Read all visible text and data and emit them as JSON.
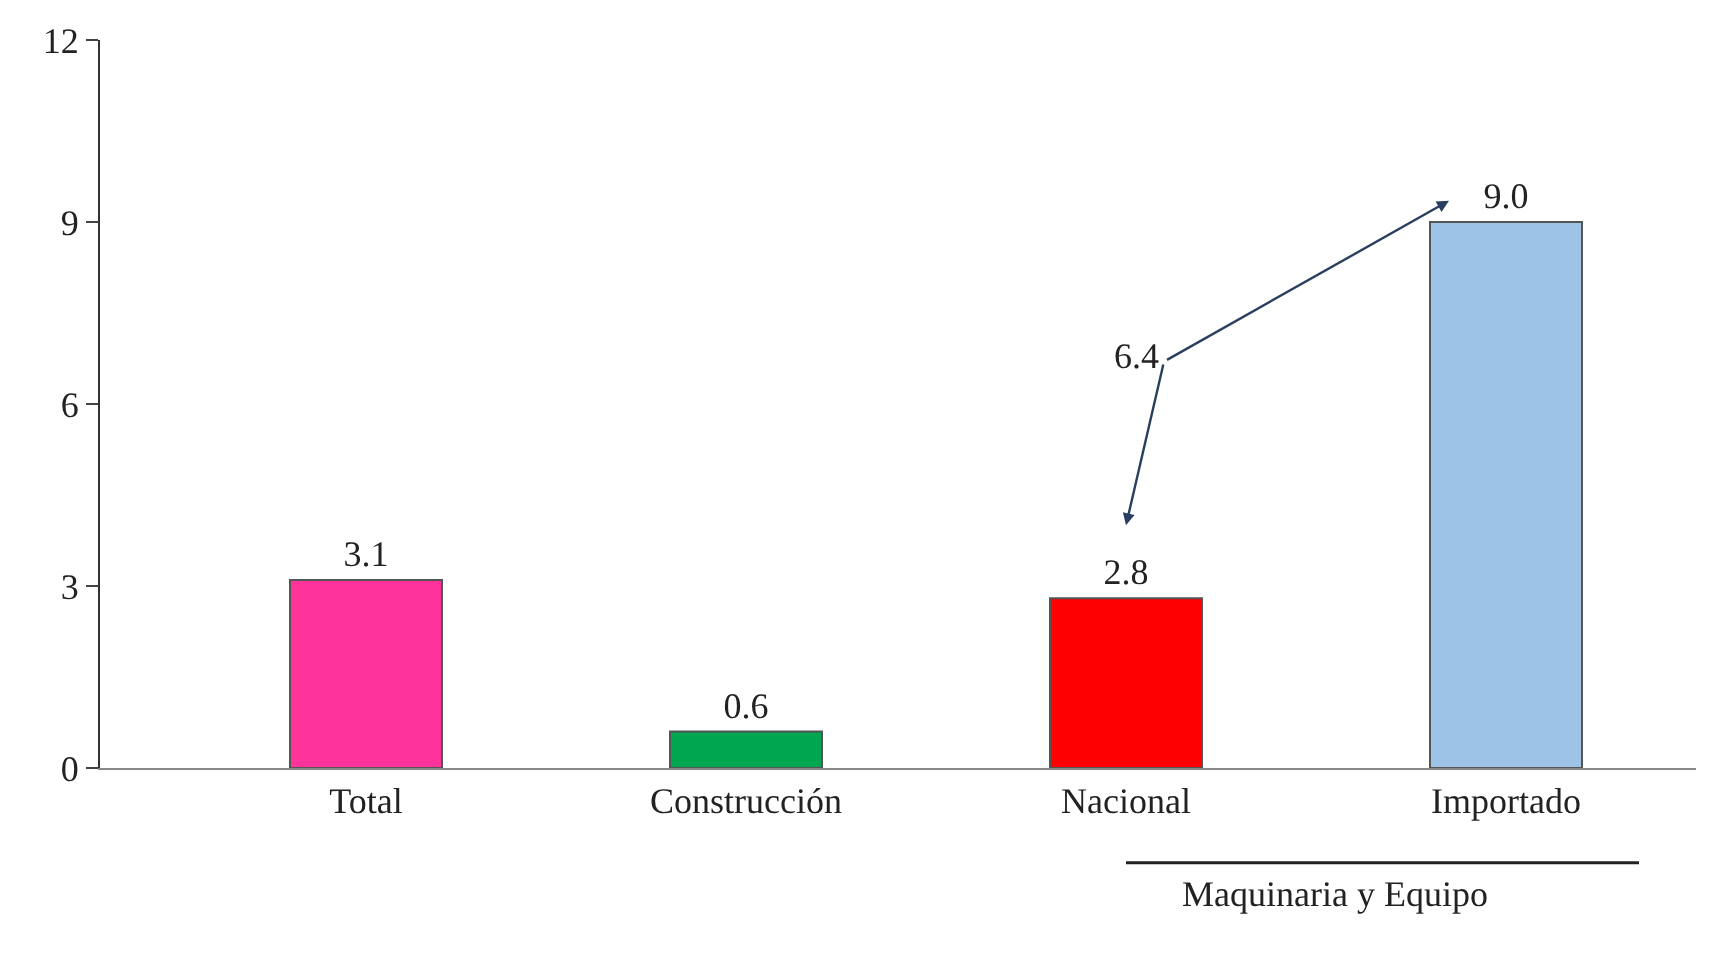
{
  "chart_data": {
    "type": "bar",
    "categories": [
      "Total",
      "Construcción",
      "Nacional",
      "Importado"
    ],
    "values": [
      3.1,
      0.6,
      2.8,
      9.0
    ],
    "colors": [
      "#ff3399",
      "#00a650",
      "#ff0000",
      "#9dc3e6"
    ],
    "value_labels": [
      "3.1",
      "0.6",
      "2.8",
      "9.0"
    ],
    "ylim": [
      0,
      12
    ],
    "yticks": [
      0,
      3,
      6,
      9,
      12
    ],
    "annotations": [
      "6.4",
      "Maquinaria y Equipo"
    ]
  }
}
